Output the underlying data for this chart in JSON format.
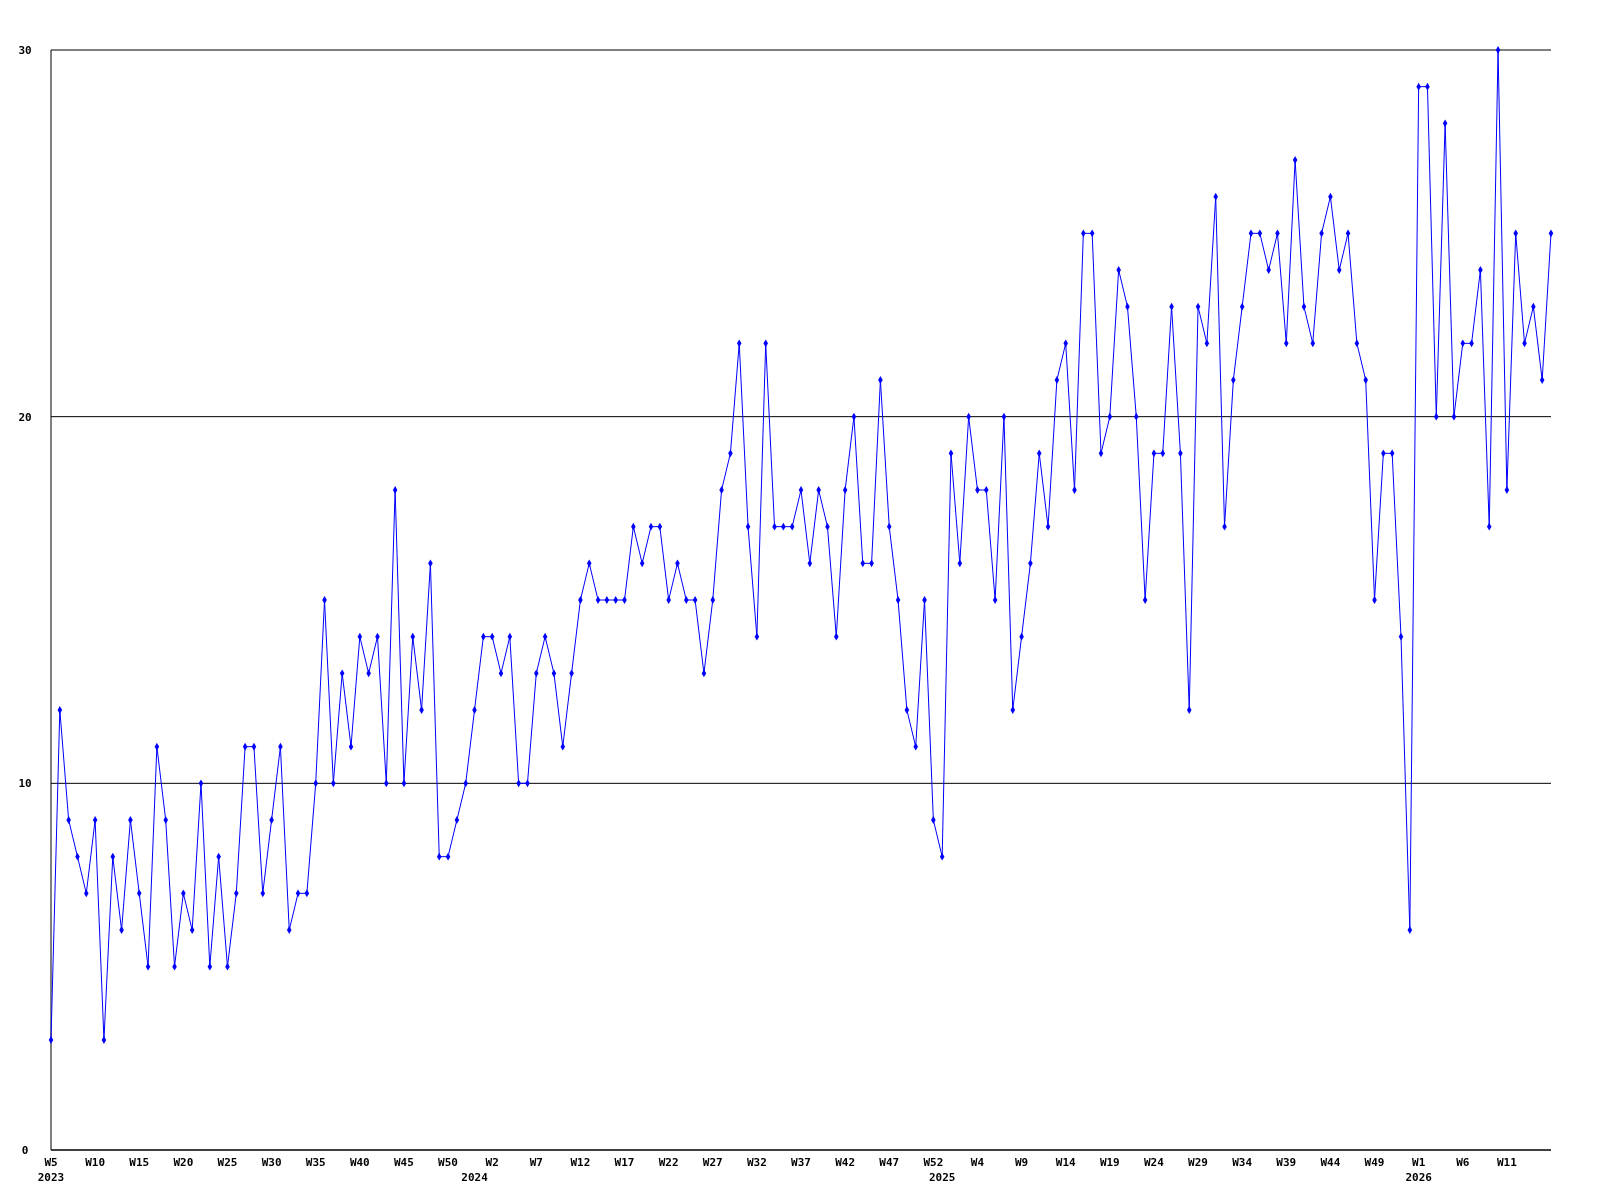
{
  "chart_data": {
    "type": "line",
    "categories": [
      "W5\n2023",
      null,
      null,
      null,
      null,
      "W10",
      null,
      null,
      null,
      null,
      "W15",
      null,
      null,
      null,
      null,
      "W20",
      null,
      null,
      null,
      null,
      "W25",
      null,
      null,
      null,
      null,
      "W30",
      null,
      null,
      null,
      null,
      "W35",
      null,
      null,
      null,
      null,
      "W40",
      null,
      null,
      null,
      null,
      "W45",
      null,
      null,
      null,
      null,
      "W50",
      null,
      null,
      "\n2024",
      null,
      "W2",
      null,
      null,
      null,
      null,
      "W7",
      null,
      null,
      null,
      null,
      "W12",
      null,
      null,
      null,
      null,
      "W17",
      null,
      null,
      null,
      null,
      "W22",
      null,
      null,
      null,
      null,
      "W27",
      null,
      null,
      null,
      null,
      "W32",
      null,
      null,
      null,
      null,
      "W37",
      null,
      null,
      null,
      null,
      "W42",
      null,
      null,
      null,
      null,
      "W47",
      null,
      null,
      null,
      null,
      "W52",
      "\n2025",
      null,
      null,
      null,
      "W4",
      null,
      null,
      null,
      null,
      "W9",
      null,
      null,
      null,
      null,
      "W14",
      null,
      null,
      null,
      null,
      "W19",
      null,
      null,
      null,
      null,
      "W24",
      null,
      null,
      null,
      null,
      "W29",
      null,
      null,
      null,
      null,
      "W34",
      null,
      null,
      null,
      null,
      "W39",
      null,
      null,
      null,
      null,
      "W44",
      null,
      null,
      null,
      null,
      "W49",
      null,
      null,
      null,
      null,
      "W1\n2026",
      null,
      null,
      null,
      null,
      "W6",
      null,
      null,
      null,
      null,
      "W11",
      null,
      null,
      null,
      null,
      null
    ],
    "series": [
      {
        "color": "#0000ff",
        "values": [
          3,
          12,
          9,
          8,
          7,
          9,
          3,
          8,
          6,
          9,
          7,
          5,
          11,
          9,
          5,
          7,
          6,
          10,
          5,
          8,
          5,
          7,
          11,
          11,
          7,
          9,
          11,
          6,
          7,
          7,
          10,
          15,
          10,
          13,
          11,
          14,
          13,
          14,
          10,
          18,
          10,
          14,
          12,
          16,
          8,
          8,
          9,
          10,
          12,
          14,
          14,
          13,
          14,
          10,
          10,
          13,
          14,
          13,
          11,
          13,
          15,
          16,
          15,
          15,
          15,
          15,
          17,
          16,
          17,
          17,
          15,
          16,
          15,
          15,
          13,
          15,
          18,
          19,
          22,
          17,
          14,
          22,
          17,
          17,
          17,
          18,
          16,
          18,
          17,
          14,
          18,
          20,
          16,
          16,
          21,
          17,
          15,
          12,
          11,
          15,
          9,
          8,
          19,
          16,
          20,
          18,
          18,
          15,
          20,
          12,
          14,
          16,
          19,
          17,
          21,
          22,
          18,
          25,
          25,
          19,
          20,
          24,
          23,
          20,
          15,
          19,
          19,
          23,
          19,
          12,
          23,
          22,
          26,
          17,
          21,
          23,
          25,
          25,
          24,
          25,
          22,
          27,
          23,
          22,
          25,
          26,
          24,
          25,
          22,
          21,
          15,
          19,
          19,
          14,
          6,
          29,
          29,
          20,
          28,
          20,
          22,
          22,
          24,
          17,
          30,
          18,
          25,
          22,
          23,
          21,
          25
        ]
      }
    ],
    "ylim": [
      0,
      30
    ],
    "yticks": [
      0,
      10,
      20,
      30
    ],
    "grid": "y",
    "marker": "diamond",
    "line_style": "solid"
  }
}
